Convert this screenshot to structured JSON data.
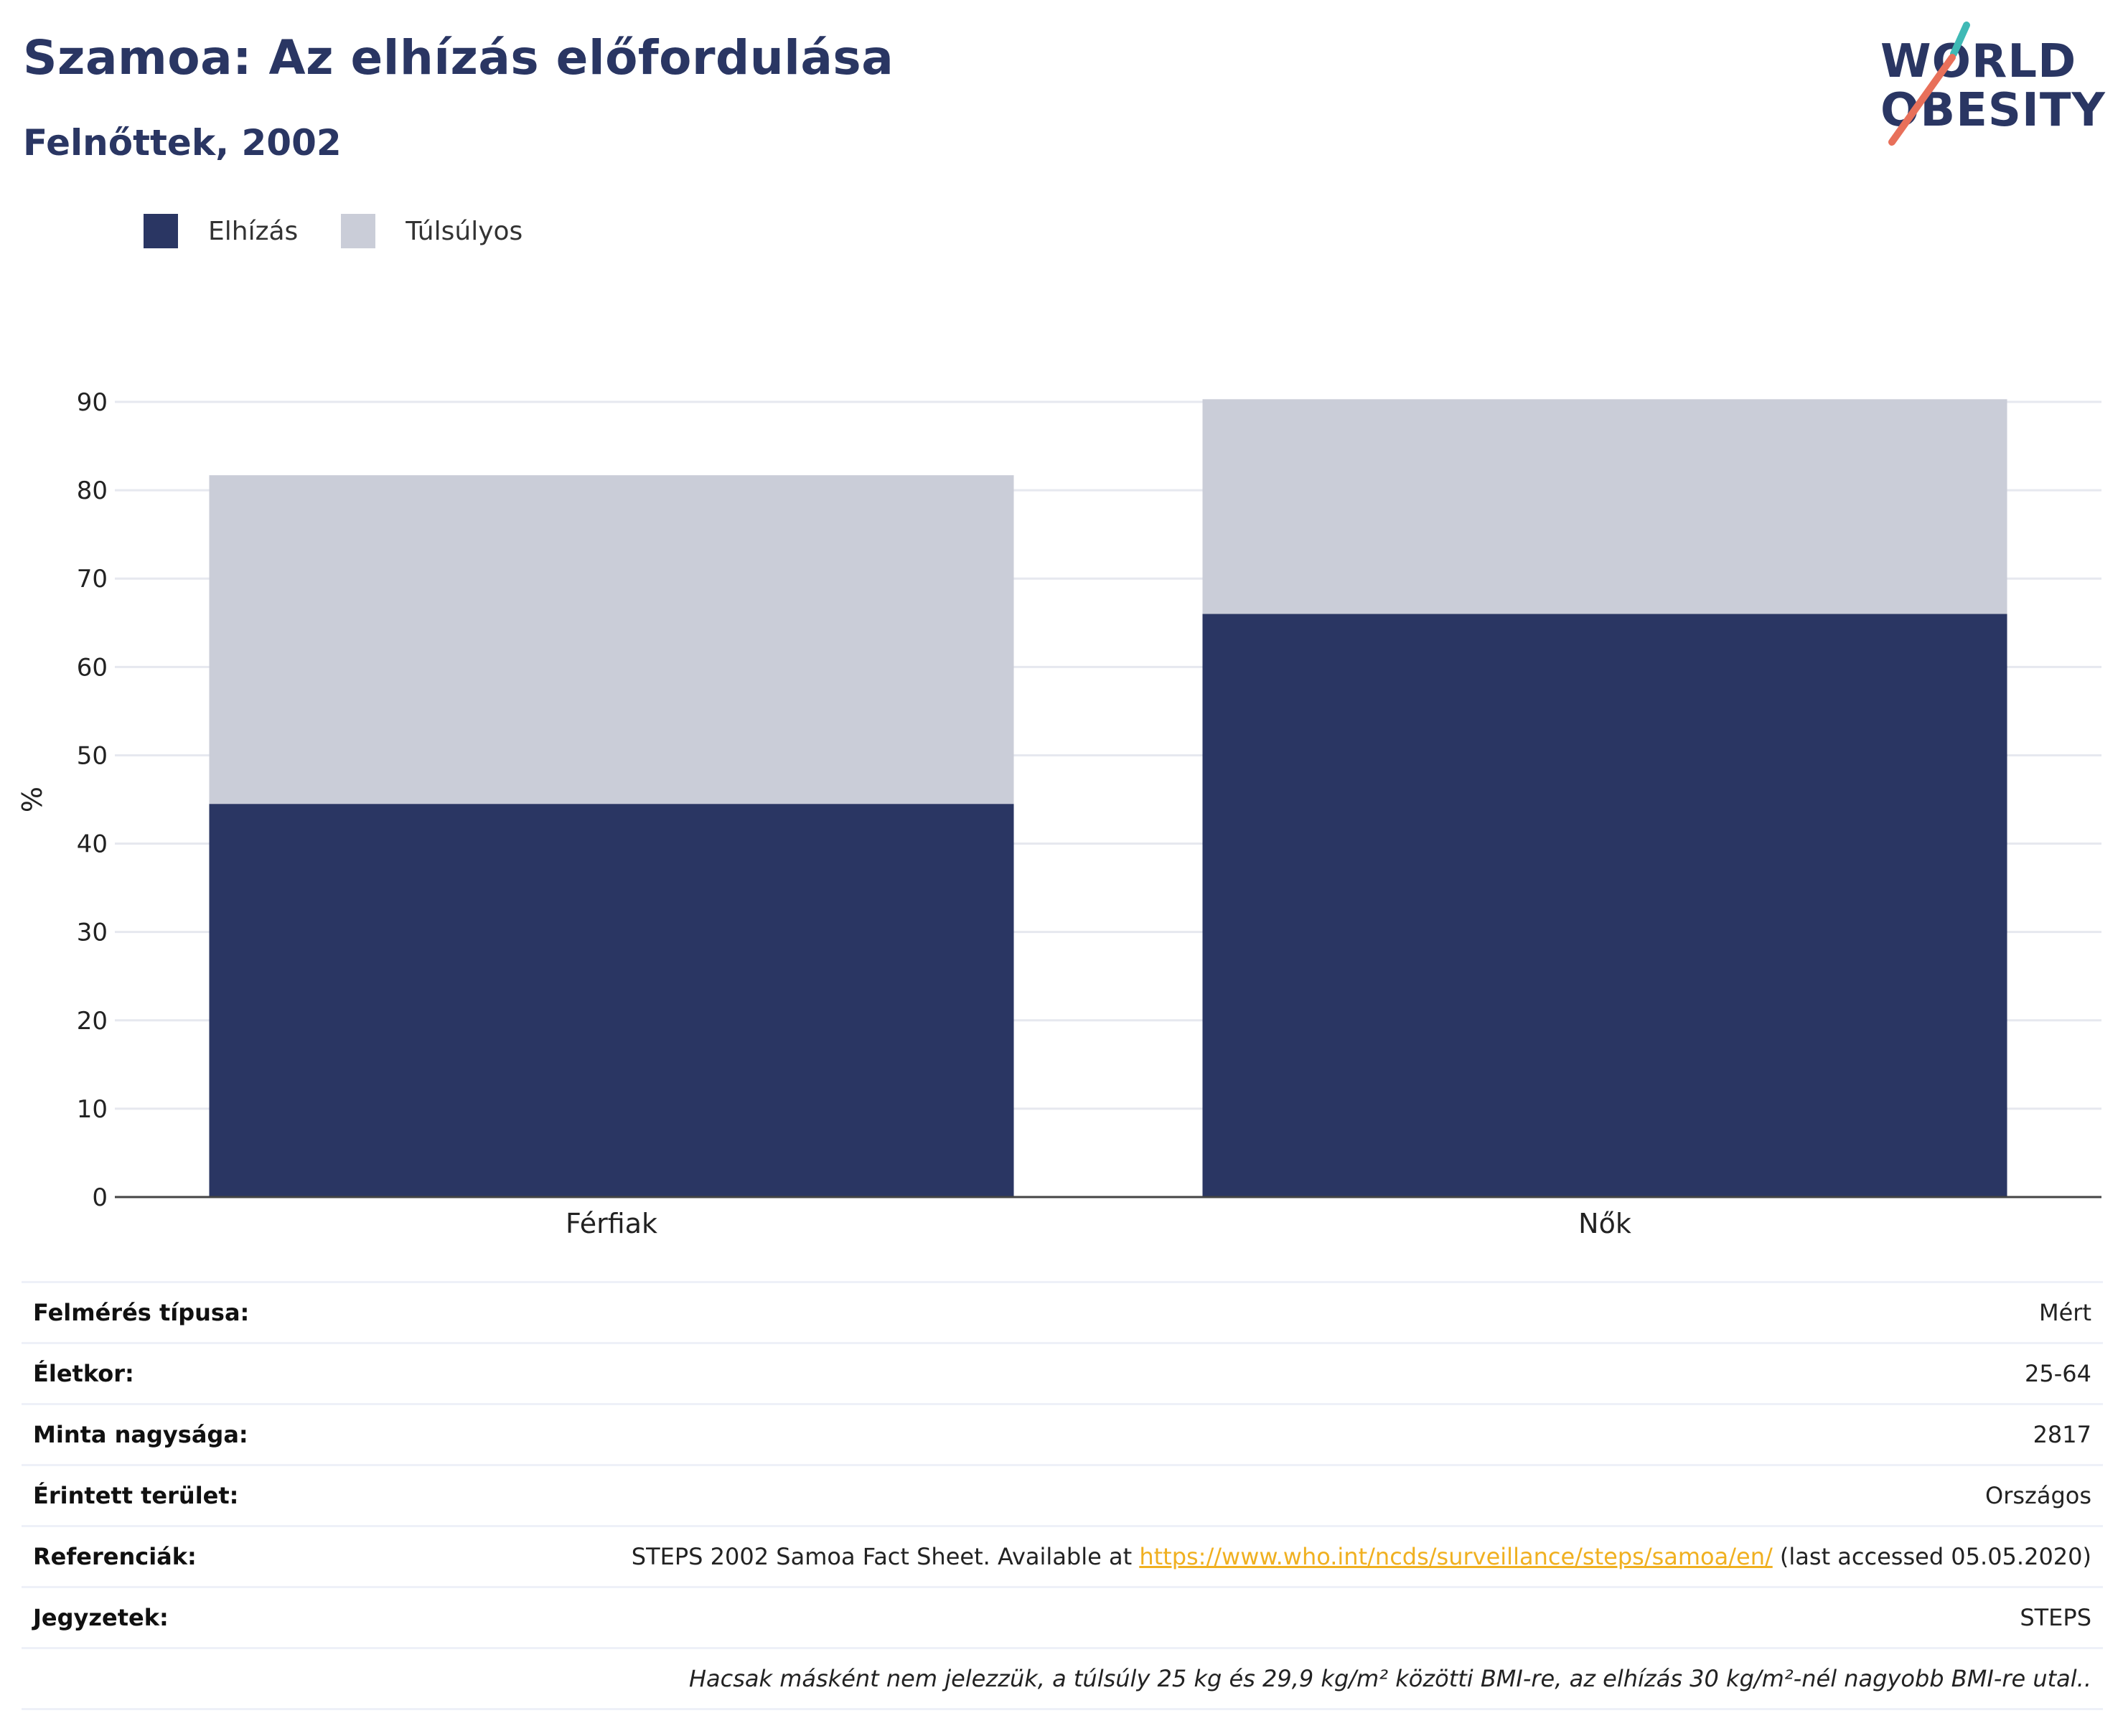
{
  "header": {
    "title": "Szamoa: Az elhízás előfordulása",
    "subtitle": "Felnőttek, 2002"
  },
  "logo": {
    "line1": "WORLD",
    "line2": "OBESITY"
  },
  "legend": [
    {
      "label": "Elhízás",
      "color": "#2a3663"
    },
    {
      "label": "Túlsúlyos",
      "color": "#cacdd8"
    }
  ],
  "chart_data": {
    "type": "bar",
    "stacked": true,
    "categories": [
      "Férfiak",
      "Nők"
    ],
    "series": [
      {
        "name": "Elhízás",
        "values": [
          44.5,
          66.0
        ],
        "color": "#2a3663"
      },
      {
        "name": "Túlsúlyos",
        "values": [
          37.2,
          24.3
        ],
        "color": "#cacdd8"
      }
    ],
    "ylabel": "%",
    "ylim": [
      0,
      90
    ],
    "yticks": [
      0,
      10,
      20,
      30,
      40,
      50,
      60,
      70,
      80,
      90
    ],
    "grid": true,
    "legend_position": "top-left"
  },
  "table": {
    "survey_type": {
      "label": "Felmérés típusa:",
      "value": "Mért"
    },
    "age": {
      "label": "Életkor:",
      "value": "25-64"
    },
    "sample_size": {
      "label": "Minta nagysága:",
      "value": "2817"
    },
    "area": {
      "label": "Érintett terület:",
      "value": "Országos"
    },
    "references": {
      "label": "Referenciák:",
      "value_prefix": "STEPS 2002 Samoa Fact Sheet. Available at ",
      "link": "https://www.who.int/ncds/surveillance/steps/samoa/en/",
      "value_suffix": " (last accessed 05.05.2020)"
    },
    "notes": {
      "label": "Jegyzetek:",
      "value": "STEPS"
    },
    "footnote": "Hacsak másként nem jelezzük, a túlsúly 25 kg és 29,9 kg/m² közötti BMI-re, az elhízás 30 kg/m²-nél nagyobb BMI-re utal.."
  }
}
